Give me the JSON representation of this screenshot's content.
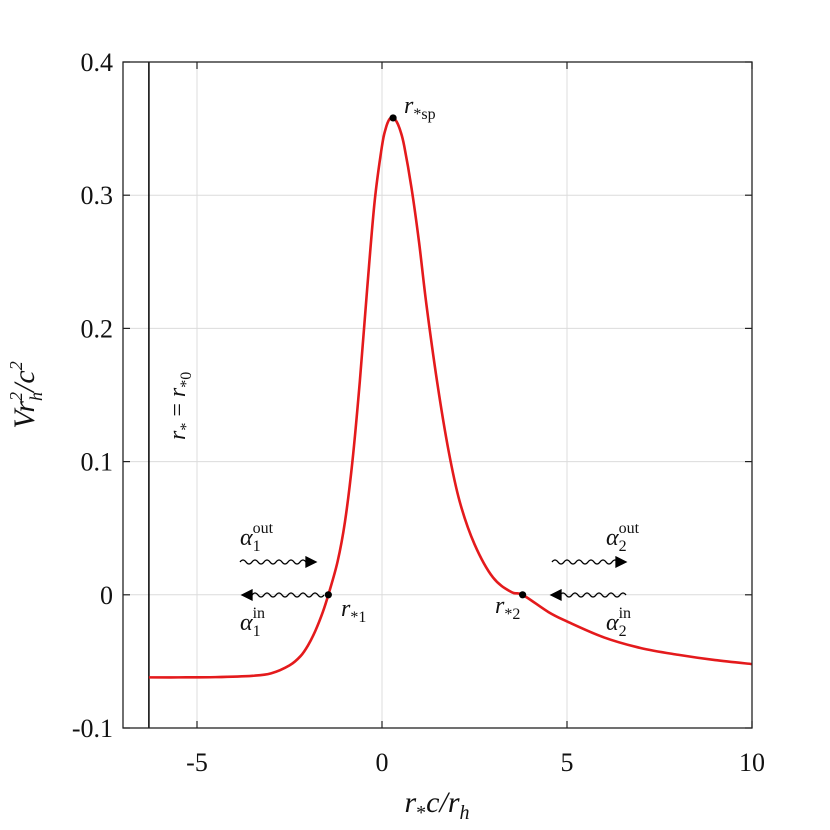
{
  "chart_data": {
    "type": "line",
    "xlabel": "r*c/rh",
    "ylabel": "Vrh²/c²",
    "xlim": [
      -7,
      10
    ],
    "ylim": [
      -0.1,
      0.4
    ],
    "x_ticks": [
      {
        "value": -5,
        "label": "-5"
      },
      {
        "value": 0,
        "label": "0"
      },
      {
        "value": 5,
        "label": "5"
      },
      {
        "value": 10,
        "label": "10"
      }
    ],
    "y_ticks": [
      {
        "value": -0.1,
        "label": "-0.1"
      },
      {
        "value": 0,
        "label": "0"
      },
      {
        "value": 0.1,
        "label": "0.1"
      },
      {
        "value": 0.2,
        "label": "0.2"
      },
      {
        "value": 0.3,
        "label": "0.3"
      },
      {
        "value": 0.4,
        "label": "0.4"
      }
    ],
    "grid": true,
    "series": [
      {
        "color": "#e41a1c",
        "x": [
          -6.3,
          -5.5,
          -4.5,
          -3.5,
          -3.0,
          -2.5,
          -2.2,
          -2.0,
          -1.8,
          -1.6,
          -1.45,
          -1.2,
          -1.0,
          -0.8,
          -0.6,
          -0.4,
          -0.2,
          0.0,
          0.1,
          0.2,
          0.3,
          0.4,
          0.5,
          0.6,
          0.8,
          1.0,
          1.2,
          1.5,
          1.8,
          2.1,
          2.5,
          3.0,
          3.5,
          3.8,
          4.5,
          5.0,
          6.0,
          7.0,
          8.0,
          9.0,
          10.0
        ],
        "y": [
          -0.062,
          -0.062,
          -0.0618,
          -0.0608,
          -0.059,
          -0.053,
          -0.046,
          -0.038,
          -0.027,
          -0.013,
          0.0,
          0.025,
          0.055,
          0.1,
          0.16,
          0.23,
          0.295,
          0.337,
          0.35,
          0.357,
          0.358,
          0.355,
          0.348,
          0.337,
          0.305,
          0.265,
          0.218,
          0.158,
          0.108,
          0.07,
          0.038,
          0.013,
          0.002,
          0.0,
          -0.013,
          -0.02,
          -0.032,
          -0.04,
          -0.045,
          -0.049,
          -0.052
        ]
      }
    ],
    "vertical_line": {
      "x": -6.3,
      "label": "r* = r*0"
    },
    "points": [
      {
        "name": "r*sp",
        "x": 0.3,
        "y": 0.358
      },
      {
        "name": "r*1",
        "x": -1.45,
        "y": 0.0
      },
      {
        "name": "r*2",
        "x": 3.8,
        "y": 0.0
      }
    ],
    "annotations": {
      "alpha1_out": {
        "base": "α",
        "sub": "1",
        "sup": "out"
      },
      "alpha1_in": {
        "base": "α",
        "sub": "1",
        "sup": "in"
      },
      "alpha2_out": {
        "base": "α",
        "sub": "2",
        "sup": "out"
      },
      "alpha2_in": {
        "base": "α",
        "sub": "2",
        "sup": "in"
      },
      "r0_line": {
        "base": "r",
        "sub": "*",
        "rhs": "r",
        "rhs_sub": "*0"
      },
      "sp": {
        "base": "r",
        "sub": "*sp"
      },
      "p1": {
        "base": "r",
        "sub": "*1"
      },
      "p2": {
        "base": "r",
        "sub": "*2"
      }
    }
  }
}
